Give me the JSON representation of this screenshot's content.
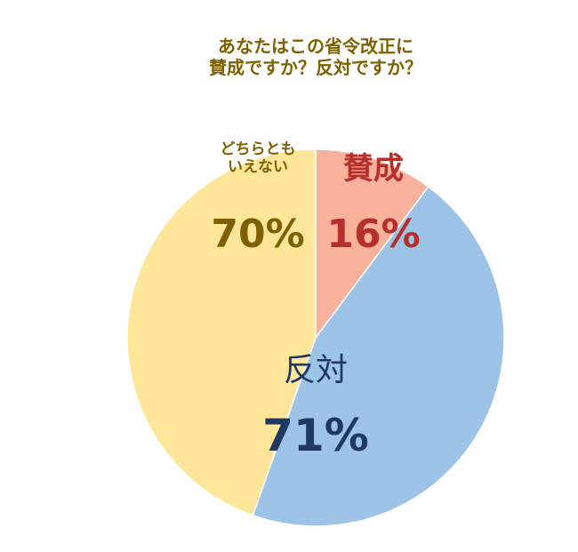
{
  "chart_data": {
    "type": "pie",
    "title": [
      "あなたはこの省令改正に",
      "賛成ですか？反対ですか？"
    ],
    "categories": [
      "賛成",
      "反対",
      "どちらともいえない"
    ],
    "values": [
      16,
      71,
      70
    ],
    "value_labels": [
      "16%",
      "71%",
      "70%"
    ],
    "colors": [
      "#f8b29c",
      "#9dc3e6",
      "#ffe699"
    ],
    "label_colors": [
      "#b5302a",
      "#1f3864",
      "#7f6000"
    ]
  }
}
